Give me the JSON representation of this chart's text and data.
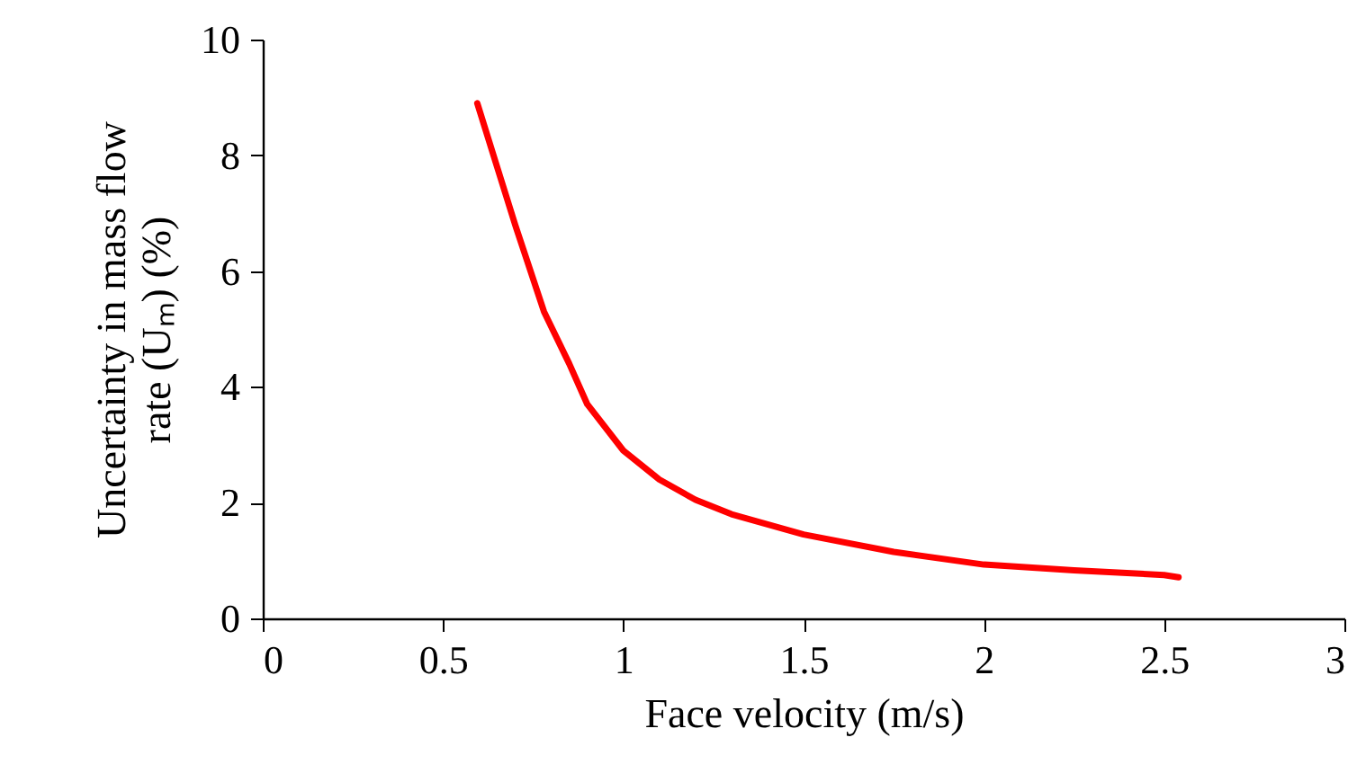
{
  "chart_data": {
    "type": "line",
    "xlabel": "Face velocity (m/s)",
    "ylabel": "Uncertainty in mass flow rate (Uₘ) (%)",
    "x": [
      0.595,
      0.65,
      0.7,
      0.78,
      0.85,
      0.9,
      1.0,
      1.1,
      1.2,
      1.3,
      1.5,
      1.75,
      2.0,
      2.25,
      2.5,
      2.54
    ],
    "series": [
      {
        "color": "#ff0000",
        "values": [
          8.9,
          7.8,
          6.8,
          5.3,
          4.4,
          3.7,
          2.9,
          2.4,
          2.05,
          1.8,
          1.45,
          1.15,
          0.93,
          0.83,
          0.75,
          0.71
        ]
      }
    ],
    "xlim": [
      0,
      3
    ],
    "xticks": [
      0,
      0.5,
      1,
      1.5,
      2,
      2.5,
      3
    ],
    "ylim": [
      0,
      10
    ],
    "yticks": [
      0,
      2,
      4,
      6,
      8,
      10
    ],
    "marker": "none",
    "line_style": "solid"
  }
}
